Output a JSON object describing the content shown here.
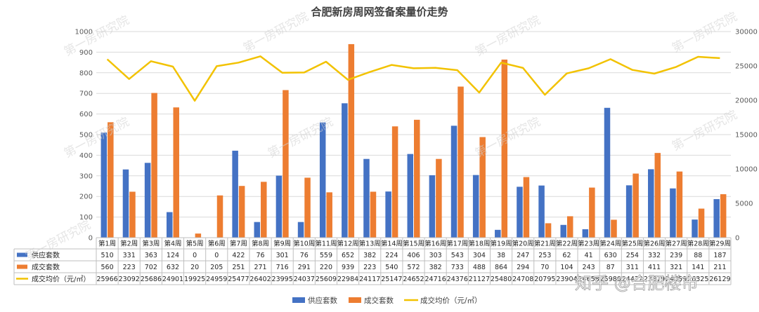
{
  "chart_data": {
    "type": "bar",
    "title": "合肥新房周网签备案量价走势",
    "categories": [
      "第1周",
      "第2周",
      "第3周",
      "第4周",
      "第5周",
      "第6周",
      "第7周",
      "第8周",
      "第9周",
      "第10周",
      "第11周",
      "第12周",
      "第13周",
      "第14周",
      "第15周",
      "第16周",
      "第17周",
      "第18周",
      "第19周",
      "第20周",
      "第21周",
      "第22周",
      "第23周",
      "第24周",
      "第25周",
      "第26周",
      "第27周",
      "第28周",
      "第29周"
    ],
    "y_left": {
      "range": [
        0,
        1000
      ],
      "ticks": [
        "0",
        "100",
        "200",
        "300",
        "400",
        "500",
        "600",
        "700",
        "800",
        "900",
        "1000"
      ]
    },
    "y_right": {
      "range": [
        0,
        30000
      ],
      "ticks": [
        "0",
        "5000",
        "10000",
        "15000",
        "20000",
        "25000",
        "30000"
      ]
    },
    "series": [
      {
        "name": "供应套数",
        "axis": "left",
        "kind": "bar",
        "color": "#4472c4",
        "values": [
          510,
          331,
          363,
          124,
          0,
          0,
          422,
          76,
          301,
          76,
          559,
          652,
          382,
          224,
          406,
          303,
          543,
          304,
          38,
          247,
          253,
          62,
          41,
          630,
          254,
          332,
          239,
          88,
          187
        ]
      },
      {
        "name": "成交套数",
        "axis": "left",
        "kind": "bar",
        "color": "#ed7d31",
        "values": [
          560,
          223,
          702,
          632,
          20,
          205,
          251,
          271,
          716,
          291,
          220,
          939,
          223,
          540,
          572,
          382,
          733,
          488,
          864,
          294,
          70,
          104,
          243,
          87,
          311,
          411,
          321,
          141,
          211
        ]
      },
      {
        "name": "成交均价（元/㎡）",
        "axis": "right",
        "kind": "line",
        "color": "#f2c200",
        "values": [
          25966,
          23092,
          25686,
          24901,
          19925,
          24959,
          25477,
          26402,
          23995,
          24037,
          25609,
          22984,
          24117,
          25147,
          24652,
          24716,
          24376,
          21127,
          25480,
          24708,
          20795,
          23904,
          24658,
          25980,
          24422,
          23879,
          24859,
          26325,
          26129
        ]
      }
    ],
    "legend": {
      "position": "bottom"
    },
    "grid": true,
    "data_table": true
  },
  "watermarks": [
    "第一房研究院"
  ],
  "brand_watermark": "知乎 @合肥楼市"
}
